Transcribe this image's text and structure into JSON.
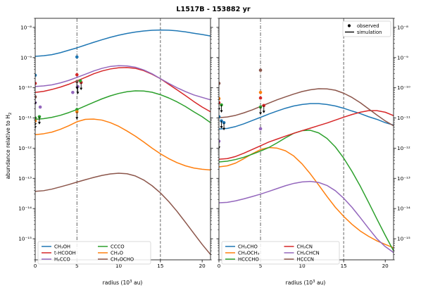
{
  "figure_title": "L1517B - 153882 yr",
  "ylabel": "abundance relative to H",
  "ylabel_sub": "2",
  "xlabel_left": "radius (10",
  "xlabel_sup": "3",
  "xlabel_right": " au)",
  "colors": {
    "blue": "#1f77b4",
    "orange": "#ff7f0e",
    "green": "#2ca02c",
    "red": "#d62728",
    "purple": "#9467bd",
    "brown": "#8c564b"
  },
  "legend_markers": {
    "observed": "observed",
    "simulation": "simulation"
  },
  "chart_data": [
    {
      "type": "line",
      "panel": "left",
      "xlim": [
        0,
        21
      ],
      "ylim": [
        2e-16,
        2e-08
      ],
      "yscale": "log",
      "xticks": [
        0,
        5,
        10,
        15,
        20
      ],
      "vlines": [
        {
          "x": 5,
          "style": "dashdot"
        },
        {
          "x": 15,
          "style": "dashed"
        }
      ],
      "legend_placement": "lower-left",
      "series": [
        {
          "name": "CH₃OH",
          "color": "#1f77b4",
          "x": [
            0,
            1,
            2,
            3,
            4,
            5,
            6,
            7,
            8,
            9,
            10,
            11,
            12,
            13,
            14,
            15,
            16,
            17,
            18,
            19,
            20,
            21
          ],
          "y": [
            1.1e-09,
            1.15e-09,
            1.25e-09,
            1.45e-09,
            1.75e-09,
            2.1e-09,
            2.6e-09,
            3.2e-09,
            3.9e-09,
            4.7e-09,
            5.5e-09,
            6.3e-09,
            7e-09,
            7.6e-09,
            8e-09,
            8.2e-09,
            8.1e-09,
            7.7e-09,
            7.1e-09,
            6.4e-09,
            5.8e-09,
            5.2e-09
          ]
        },
        {
          "name": "t-HCOOH",
          "color": "#d62728",
          "x": [
            0,
            1,
            2,
            3,
            4,
            5,
            6,
            7,
            8,
            9,
            10,
            11,
            12,
            13,
            14,
            15,
            16,
            17,
            18,
            19,
            20,
            21
          ],
          "y": [
            7e-11,
            7.6e-11,
            8.8e-11,
            1.05e-10,
            1.3e-10,
            1.7e-10,
            2.2e-10,
            2.9e-10,
            3.6e-10,
            4.2e-10,
            4.6e-10,
            4.7e-10,
            4.4e-10,
            3.7e-10,
            2.8e-10,
            2e-10,
            1.3e-10,
            8.5e-11,
            5.5e-11,
            3.5e-11,
            2.3e-11,
            1.6e-11
          ]
        },
        {
          "name": "H₂CCO",
          "color": "#9467bd",
          "x": [
            0,
            1,
            2,
            3,
            4,
            5,
            6,
            7,
            8,
            9,
            10,
            11,
            12,
            13,
            14,
            15,
            16,
            17,
            18,
            19,
            20,
            21
          ],
          "y": [
            1.1e-10,
            1.15e-10,
            1.25e-10,
            1.45e-10,
            1.75e-10,
            2.2e-10,
            2.8e-10,
            3.6e-10,
            4.4e-10,
            5.1e-10,
            5.4e-10,
            5.3e-10,
            4.8e-10,
            3.9e-10,
            2.9e-10,
            2e-10,
            1.4e-10,
            1e-10,
            7.5e-11,
            5.8e-11,
            4.8e-11,
            4e-11
          ]
        },
        {
          "name": "CCCO",
          "color": "#2ca02c",
          "x": [
            0,
            1,
            2,
            3,
            4,
            5,
            6,
            7,
            8,
            9,
            10,
            11,
            12,
            13,
            14,
            15,
            16,
            17,
            18,
            19,
            20,
            21
          ],
          "y": [
            9e-12,
            9.5e-12,
            1.05e-11,
            1.22e-11,
            1.5e-11,
            1.9e-11,
            2.5e-11,
            3.3e-11,
            4.3e-11,
            5.4e-11,
            6.5e-11,
            7.4e-11,
            7.9e-11,
            7.8e-11,
            7.1e-11,
            5.9e-11,
            4.6e-11,
            3.4e-11,
            2.4e-11,
            1.6e-11,
            1.1e-11,
            7e-12
          ]
        },
        {
          "name": "CH₃O",
          "color": "#ff7f0e",
          "x": [
            0,
            1,
            2,
            3,
            4,
            5,
            6,
            7,
            8,
            9,
            10,
            11,
            12,
            13,
            14,
            15,
            16,
            17,
            18,
            19,
            20,
            21
          ],
          "y": [
            2.8e-12,
            3e-12,
            3.4e-12,
            4.2e-12,
            5.5e-12,
            7.5e-12,
            9e-12,
            9.2e-12,
            8.5e-12,
            7e-12,
            5.3e-12,
            3.7e-12,
            2.5e-12,
            1.6e-12,
            1e-12,
            6.5e-13,
            4.5e-13,
            3.3e-13,
            2.6e-13,
            2.2e-13,
            2e-13,
            1.9e-13
          ]
        },
        {
          "name": "CH₃OCHO",
          "color": "#8c564b",
          "x": [
            0,
            1,
            2,
            3,
            4,
            5,
            6,
            7,
            8,
            9,
            10,
            11,
            12,
            13,
            14,
            15,
            16,
            17,
            18,
            19,
            20,
            21
          ],
          "y": [
            3.7e-14,
            3.9e-14,
            4.4e-14,
            5.2e-14,
            6.2e-14,
            7.5e-14,
            9e-14,
            1.07e-13,
            1.25e-13,
            1.4e-13,
            1.48e-13,
            1.42e-13,
            1.2e-13,
            8.8e-14,
            5.7e-14,
            3.3e-14,
            1.7e-14,
            8e-15,
            3.5e-15,
            1.5e-15,
            6.5e-16,
            3e-16
          ]
        }
      ],
      "observed": [
        {
          "color": "#1f77b4",
          "x": 0,
          "y": 2.6e-10,
          "limit": false
        },
        {
          "color": "#1f77b4",
          "x": 5,
          "y": 1.05e-09,
          "limit": false
        },
        {
          "color": "#d62728",
          "x": 0,
          "y": 1.4e-10,
          "limit": false
        },
        {
          "color": "#d62728",
          "x": 5,
          "y": 2.7e-10,
          "limit": false
        },
        {
          "color": "#d62728",
          "x": 5.5,
          "y": 1.5e-10,
          "limit": true
        },
        {
          "color": "#9467bd",
          "x": 0,
          "y": 3.2e-11,
          "limit": false
        },
        {
          "color": "#9467bd",
          "x": 0.6,
          "y": 2.3e-11,
          "limit": false
        },
        {
          "color": "#9467bd",
          "x": 4.5,
          "y": 7e-11,
          "limit": false
        },
        {
          "color": "#9467bd",
          "x": 5.1,
          "y": 1.1e-10,
          "limit": true
        },
        {
          "color": "#2ca02c",
          "x": 0,
          "y": 1e-11,
          "limit": true
        },
        {
          "color": "#2ca02c",
          "x": 0.5,
          "y": 1.1e-11,
          "limit": true
        },
        {
          "color": "#2ca02c",
          "x": 5,
          "y": 1.9e-11,
          "limit": false
        },
        {
          "color": "#2ca02c",
          "x": 5.4,
          "y": 1.7e-10,
          "limit": false
        },
        {
          "color": "#ff7f0e",
          "x": 0,
          "y": 8e-12,
          "limit": true
        },
        {
          "color": "#ff7f0e",
          "x": 5,
          "y": 1.6e-11,
          "limit": true
        },
        {
          "color": "#8c564b",
          "x": 0,
          "y": 5e-11,
          "limit": true
        },
        {
          "color": "#8c564b",
          "x": 5,
          "y": 1.6e-10,
          "limit": true
        }
      ]
    },
    {
      "type": "line",
      "panel": "right",
      "xlim": [
        0,
        21
      ],
      "ylim": [
        2e-16,
        2e-08
      ],
      "yscale": "log",
      "xticks": [
        0,
        5,
        10,
        15,
        20
      ],
      "vlines": [
        {
          "x": 5,
          "style": "dashdot"
        },
        {
          "x": 15,
          "style": "dashed"
        }
      ],
      "legend_placement": "lower-left",
      "series": [
        {
          "name": "CH₃CHO",
          "color": "#1f77b4",
          "x": [
            0,
            1,
            2,
            3,
            4,
            5,
            6,
            7,
            8,
            9,
            10,
            11,
            12,
            13,
            14,
            15,
            16,
            17,
            18,
            19,
            20,
            21
          ],
          "y": [
            4.3e-12,
            4.5e-12,
            5.2e-12,
            6.4e-12,
            8.2e-12,
            1.05e-11,
            1.35e-11,
            1.7e-11,
            2.1e-11,
            2.5e-11,
            2.8e-11,
            3e-11,
            3e-11,
            2.8e-11,
            2.5e-11,
            2.1e-11,
            1.7e-11,
            1.4e-11,
            1.1e-11,
            9e-12,
            7e-12,
            5.8e-12
          ]
        },
        {
          "name": "CH₃OCH₃",
          "color": "#ff7f0e",
          "x": [
            0,
            1,
            2,
            3,
            4,
            5,
            6,
            7,
            8,
            9,
            10,
            11,
            12,
            13,
            14,
            15,
            16,
            17,
            18,
            19,
            20,
            21
          ],
          "y": [
            2.4e-13,
            2.6e-13,
            3.2e-13,
            4.5e-13,
            6.5e-13,
            9e-13,
            1.05e-12,
            1e-12,
            8.2e-13,
            5.5e-13,
            3e-13,
            1.4e-13,
            6e-14,
            2.5e-14,
            1.1e-14,
            5.5e-15,
            3e-15,
            1.8e-15,
            1.2e-15,
            8.5e-16,
            6.5e-16,
            5e-16
          ]
        },
        {
          "name": "HCCCHO",
          "color": "#2ca02c",
          "x": [
            0,
            1,
            2,
            3,
            4,
            5,
            6,
            7,
            8,
            9,
            10,
            11,
            12,
            13,
            14,
            15,
            16,
            17,
            18,
            19,
            20,
            21
          ],
          "y": [
            3.5e-13,
            3.7e-13,
            4.2e-13,
            5e-13,
            6.3e-13,
            8e-13,
            1.05e-12,
            1.5e-12,
            2.2e-12,
            3.1e-12,
            3.8e-12,
            3.9e-12,
            3.2e-12,
            2.1e-12,
            1.1e-12,
            4.7e-13,
            1.7e-13,
            5.5e-14,
            1.6e-14,
            4.5e-15,
            1.3e-15,
            4e-16
          ]
        },
        {
          "name": "CH₃CN",
          "color": "#d62728",
          "x": [
            0,
            1,
            2,
            3,
            4,
            5,
            6,
            7,
            8,
            9,
            10,
            11,
            12,
            13,
            14,
            15,
            16,
            17,
            18,
            19,
            20,
            21
          ],
          "y": [
            4.3e-13,
            4.5e-13,
            5.3e-13,
            6.8e-13,
            9e-13,
            1.2e-12,
            1.6e-12,
            2e-12,
            2.5e-12,
            3.1e-12,
            3.8e-12,
            4.6e-12,
            5.6e-12,
            6.8e-12,
            8.5e-12,
            1.06e-11,
            1.3e-11,
            1.55e-11,
            1.75e-11,
            1.75e-11,
            1.55e-11,
            1.2e-11
          ]
        },
        {
          "name": "CH₂CHCN",
          "color": "#9467bd",
          "x": [
            0,
            1,
            2,
            3,
            4,
            5,
            6,
            7,
            8,
            9,
            10,
            11,
            12,
            13,
            14,
            15,
            16,
            17,
            18,
            19,
            20,
            21
          ],
          "y": [
            1.55e-14,
            1.6e-14,
            1.8e-14,
            2.1e-14,
            2.5e-14,
            3e-14,
            3.7e-14,
            4.6e-14,
            5.7e-14,
            6.8e-14,
            7.6e-14,
            7.9e-14,
            7.3e-14,
            5.8e-14,
            3.9e-14,
            2.2e-14,
            1.1e-14,
            5e-15,
            2.2e-15,
            1e-15,
            5.5e-16,
            3.5e-16
          ]
        },
        {
          "name": "HCCCN",
          "color": "#8c564b",
          "x": [
            0,
            1,
            2,
            3,
            4,
            5,
            6,
            7,
            8,
            9,
            10,
            11,
            12,
            13,
            14,
            15,
            16,
            17,
            18,
            19,
            20,
            21
          ],
          "y": [
            1.02e-11,
            1.08e-11,
            1.22e-11,
            1.48e-11,
            1.85e-11,
            2.4e-11,
            3.1e-11,
            4e-11,
            5e-11,
            6.2e-11,
            7.5e-11,
            8.6e-11,
            9.3e-11,
            9.2e-11,
            8.3e-11,
            6.6e-11,
            4.8e-11,
            3.2e-11,
            2e-11,
            1.25e-11,
            8e-12,
            5.5e-12
          ]
        }
      ],
      "observed": [
        {
          "color": "#8c564b",
          "x": 0,
          "y": 1.4e-10,
          "limit": false
        },
        {
          "color": "#8c564b",
          "x": 5,
          "y": 3.8e-10,
          "limit": false
        },
        {
          "color": "#ff7f0e",
          "x": 0,
          "y": 4.4e-11,
          "limit": false
        },
        {
          "color": "#ff7f0e",
          "x": 5,
          "y": 7e-11,
          "limit": false
        },
        {
          "color": "#2ca02c",
          "x": 0.3,
          "y": 2.7e-11,
          "limit": true
        },
        {
          "color": "#2ca02c",
          "x": 5,
          "y": 2.3e-11,
          "limit": true
        },
        {
          "color": "#d62728",
          "x": 0,
          "y": 3.2e-11,
          "limit": true
        },
        {
          "color": "#d62728",
          "x": 5,
          "y": 4.6e-11,
          "limit": false
        },
        {
          "color": "#d62728",
          "x": 5.4,
          "y": 2.6e-11,
          "limit": true
        },
        {
          "color": "#1f77b4",
          "x": 0,
          "y": 1.1e-11,
          "limit": false
        },
        {
          "color": "#1f77b4",
          "x": 0.3,
          "y": 8e-12,
          "limit": true
        },
        {
          "color": "#1f77b4",
          "x": 0.6,
          "y": 7e-12,
          "limit": true
        },
        {
          "color": "#9467bd",
          "x": 0,
          "y": 1.7e-12,
          "limit": true
        },
        {
          "color": "#9467bd",
          "x": 5,
          "y": 4.4e-12,
          "limit": false
        }
      ]
    }
  ]
}
